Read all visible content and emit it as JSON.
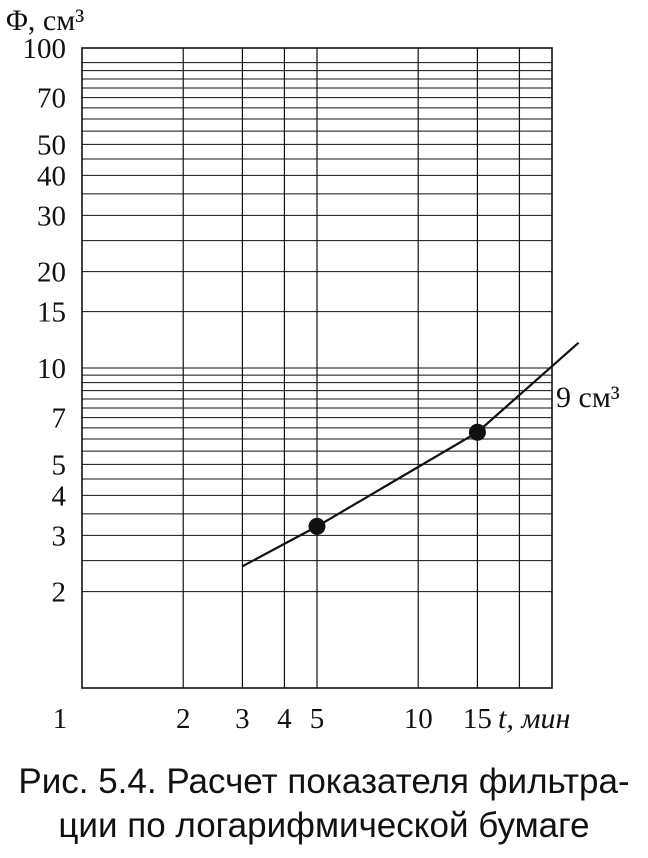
{
  "chart_data": {
    "type": "line",
    "scale": "log-log",
    "ylabel": "Φ, см³",
    "xlabel": "t, мин",
    "x_ticks": [
      {
        "value": 1,
        "label": "1"
      },
      {
        "value": 2,
        "label": "2"
      },
      {
        "value": 3,
        "label": "3"
      },
      {
        "value": 4,
        "label": "4"
      },
      {
        "value": 5,
        "label": "5"
      },
      {
        "value": 10,
        "label": "10"
      },
      {
        "value": 15,
        "label": "15"
      }
    ],
    "y_ticks": [
      {
        "value": 2,
        "label": "2"
      },
      {
        "value": 3,
        "label": "3"
      },
      {
        "value": 4,
        "label": "4"
      },
      {
        "value": 5,
        "label": "5"
      },
      {
        "value": 7,
        "label": "7"
      },
      {
        "value": 10,
        "label": "10"
      },
      {
        "value": 15,
        "label": "15"
      },
      {
        "value": 20,
        "label": "20"
      },
      {
        "value": 30,
        "label": "30"
      },
      {
        "value": 40,
        "label": "40"
      },
      {
        "value": 50,
        "label": "50"
      },
      {
        "value": 70,
        "label": "70"
      },
      {
        "value": 100,
        "label": "100"
      }
    ],
    "series": [
      {
        "x": [
          3,
          5,
          15,
          30
        ],
        "y": [
          2.4,
          3.2,
          6.3,
          12
        ]
      }
    ],
    "points": [
      {
        "x": 5,
        "y": 3.2
      },
      {
        "x": 15,
        "y": 6.3
      }
    ],
    "annotation": "9 см³",
    "annotation_at": {
      "x": 25,
      "y": 9
    },
    "xlim": [
      1,
      25
    ],
    "ylim": [
      1,
      100
    ],
    "grid": true
  },
  "caption": {
    "line1": "Рис. 5.4. Расчет показателя фильтра-",
    "line2": "ции по логарифмической бумаге"
  }
}
